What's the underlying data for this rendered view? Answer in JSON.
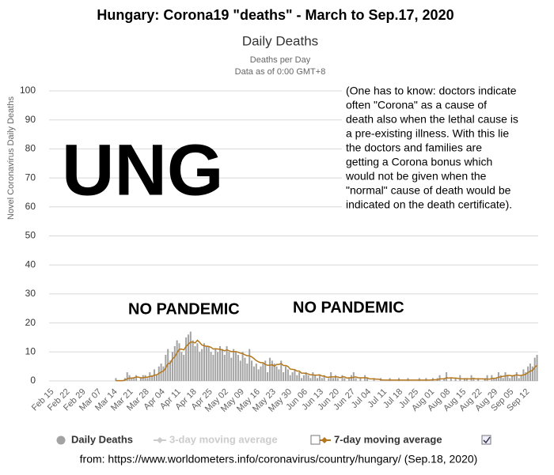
{
  "chart_data": {
    "type": "bar",
    "title": "Hungary: Corona19 \"deaths\" - March to Sep.17, 2020",
    "subtitle": "Daily Deaths",
    "subtitle_lines": [
      "Deaths per Day",
      "Data as of 0:00 GMT+8"
    ],
    "y_label": "Novel Coronavirus Daily Deaths",
    "annotation_big": "UNG",
    "annotation_note": [
      "(One has to know: doctors indicate",
      "often \"Corona\" as a cause of",
      "death also when the lethal cause is",
      "a pre-existing illness. With this lie",
      "the doctors and families are",
      "getting a Corona bonus which",
      "would not be given when the",
      "\"normal\" cause of death would be",
      "indicated on the death certificate)."
    ],
    "annotation_banners": [
      "NO PANDEMIC",
      "NO PANDEMIC"
    ],
    "source": "from: https://www.worldometers.info/coronavirus/country/hungary/ (Sep.18, 2020)",
    "ylim": [
      0,
      100
    ],
    "yticks": [
      0,
      10,
      20,
      30,
      40,
      50,
      60,
      70,
      80,
      90,
      100
    ],
    "grid": true,
    "categories": [
      "Feb 15",
      null,
      null,
      null,
      null,
      null,
      null,
      "Feb 22",
      null,
      null,
      null,
      null,
      null,
      null,
      "Feb 29",
      null,
      null,
      null,
      null,
      null,
      null,
      "Mar 07",
      null,
      null,
      null,
      null,
      null,
      null,
      "Mar 14",
      null,
      null,
      null,
      null,
      null,
      null,
      "Mar 21",
      null,
      null,
      null,
      null,
      null,
      null,
      "Mar 28",
      null,
      null,
      null,
      null,
      null,
      null,
      "Apr 04",
      null,
      null,
      null,
      null,
      null,
      null,
      "Apr 11",
      null,
      null,
      null,
      null,
      null,
      null,
      "Apr 18",
      null,
      null,
      null,
      null,
      null,
      null,
      "Apr 25",
      null,
      null,
      null,
      null,
      null,
      null,
      "May 02",
      null,
      null,
      null,
      null,
      null,
      null,
      "May 09",
      null,
      null,
      null,
      null,
      null,
      null,
      "May 16",
      null,
      null,
      null,
      null,
      null,
      null,
      "May 23",
      null,
      null,
      null,
      null,
      null,
      null,
      "May 30",
      null,
      null,
      null,
      null,
      null,
      null,
      "Jun 06",
      null,
      null,
      null,
      null,
      null,
      null,
      "Jun 13",
      null,
      null,
      null,
      null,
      null,
      null,
      "Jun 20",
      null,
      null,
      null,
      null,
      null,
      null,
      "Jun 27",
      null,
      null,
      null,
      null,
      null,
      null,
      "Jul 04",
      null,
      null,
      null,
      null,
      null,
      null,
      "Jul 11",
      null,
      null,
      null,
      null,
      null,
      null,
      "Jul 18",
      null,
      null,
      null,
      null,
      null,
      null,
      "Jul 25",
      null,
      null,
      null,
      null,
      null,
      null,
      "Aug 01",
      null,
      null,
      null,
      null,
      null,
      null,
      "Aug 08",
      null,
      null,
      null,
      null,
      null,
      null,
      "Aug 15",
      null,
      null,
      null,
      null,
      null,
      null,
      "Aug 22",
      null,
      null,
      null,
      null,
      null,
      null,
      "Aug 29",
      null,
      null,
      null,
      null,
      null,
      null,
      "Sep 05",
      null,
      null,
      null,
      null,
      null,
      null,
      "Sep 12",
      null,
      null,
      null,
      null,
      null
    ],
    "series": [
      {
        "name": "Daily Deaths",
        "type": "bar",
        "color": "#a3a3a3",
        "values": [
          0,
          0,
          0,
          0,
          0,
          0,
          0,
          0,
          0,
          0,
          0,
          0,
          0,
          0,
          0,
          0,
          0,
          0,
          0,
          0,
          0,
          0,
          0,
          0,
          0,
          0,
          0,
          0,
          0,
          1,
          0,
          0,
          0,
          1,
          3,
          2,
          1,
          1,
          2,
          0,
          1,
          2,
          2,
          1,
          3,
          2,
          4,
          2,
          5,
          6,
          5,
          9,
          11,
          7,
          10,
          12,
          14,
          13,
          10,
          9,
          15,
          16,
          17,
          14,
          12,
          13,
          10,
          11,
          13,
          12,
          12,
          10,
          9,
          11,
          10,
          12,
          11,
          9,
          12,
          10,
          8,
          11,
          10,
          9,
          7,
          10,
          8,
          6,
          11,
          7,
          5,
          6,
          4,
          5,
          6,
          7,
          3,
          8,
          7,
          6,
          5,
          4,
          7,
          3,
          5,
          4,
          2,
          3,
          4,
          2,
          3,
          1,
          2,
          3,
          2,
          1,
          3,
          2,
          1,
          2,
          1,
          2,
          0,
          1,
          3,
          1,
          2,
          1,
          0,
          2,
          1,
          0,
          1,
          2,
          3,
          1,
          0,
          1,
          0,
          2,
          1,
          0,
          0,
          1,
          0,
          0,
          1,
          0,
          0,
          0,
          1,
          0,
          0,
          0,
          1,
          0,
          0,
          0,
          1,
          0,
          0,
          0,
          0,
          1,
          0,
          0,
          1,
          0,
          0,
          1,
          0,
          1,
          2,
          0,
          1,
          3,
          0,
          1,
          0,
          1,
          0,
          2,
          0,
          1,
          1,
          0,
          2,
          1,
          0,
          1,
          0,
          0,
          1,
          2,
          0,
          2,
          1,
          1,
          3,
          2,
          1,
          3,
          2,
          1,
          2,
          2,
          3,
          1,
          2,
          4,
          3,
          5,
          6,
          5,
          8,
          9
        ]
      },
      {
        "name": "3-day moving average",
        "type": "line",
        "color": "#cccccc",
        "visible": false
      },
      {
        "name": "7-day moving average",
        "type": "line",
        "color": "#b5771c",
        "values": [
          null,
          null,
          null,
          null,
          null,
          null,
          null,
          null,
          null,
          null,
          null,
          null,
          null,
          null,
          null,
          null,
          null,
          null,
          null,
          null,
          null,
          null,
          null,
          null,
          null,
          null,
          null,
          null,
          null,
          0.1,
          0.1,
          0.1,
          0.1,
          0.3,
          0.7,
          1,
          1,
          1.1,
          1.4,
          1.3,
          1.1,
          1.1,
          1.3,
          1.3,
          1.6,
          1.6,
          2,
          2.1,
          2.6,
          3.1,
          3.4,
          4.4,
          6,
          6.1,
          7.6,
          8.3,
          9.7,
          10.9,
          11,
          10.7,
          11.9,
          12.7,
          13.4,
          13.4,
          13.1,
          14,
          13.3,
          12.4,
          12.1,
          12,
          11.9,
          11.6,
          11,
          11.1,
          11,
          10.9,
          10.7,
          10.4,
          10.7,
          10.4,
          10.1,
          10.1,
          10.1,
          9.9,
          9.6,
          9.4,
          9,
          8.7,
          8.7,
          8.3,
          7.7,
          7,
          6.6,
          6.3,
          6.3,
          5.7,
          5.4,
          5.4,
          5.6,
          5.1,
          5.7,
          5.7,
          6,
          5.3,
          5.3,
          5,
          4.1,
          4,
          3.9,
          3.4,
          3.4,
          2.7,
          2.7,
          2.6,
          2.4,
          2.1,
          2.1,
          2,
          2,
          2.1,
          1.7,
          1.7,
          1.3,
          1.3,
          1.4,
          1.4,
          1.4,
          1.4,
          1.1,
          1.4,
          1.4,
          1,
          1.1,
          1.1,
          1.3,
          1.4,
          1.1,
          1.1,
          1.1,
          1.1,
          1.1,
          0.7,
          0.7,
          0.7,
          0.6,
          0.6,
          0.4,
          0.3,
          0.3,
          0.3,
          0.3,
          0.3,
          0.3,
          0.3,
          0.3,
          0.3,
          0.3,
          0.3,
          0.3,
          0.3,
          0.3,
          0.3,
          0.3,
          0.3,
          0.3,
          0.3,
          0.3,
          0.3,
          0.3,
          0.4,
          0.4,
          0.4,
          0.7,
          0.7,
          0.7,
          1.1,
          1,
          1.1,
          1,
          1,
          0.9,
          0.7,
          0.7,
          0.7,
          0.7,
          0.7,
          0.7,
          0.9,
          0.7,
          0.7,
          0.7,
          0.7,
          0.6,
          0.7,
          0.6,
          0.9,
          0.9,
          1,
          1.3,
          1.4,
          1.6,
          1.7,
          1.9,
          1.9,
          1.7,
          1.9,
          2.1,
          1.9,
          1.9,
          2.1,
          2.3,
          2.9,
          3.4,
          3.6,
          4.7,
          5.4
        ]
      }
    ]
  }
}
